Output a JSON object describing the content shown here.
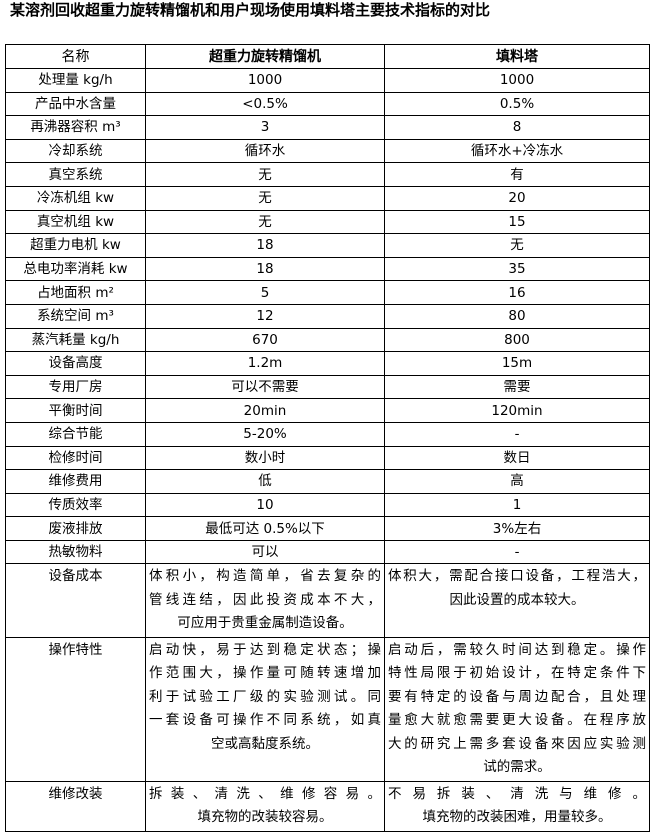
{
  "title": "某溶剂回收超重力旋转精馏机和用户现场使用填料塔主要技术指标的对比",
  "table": {
    "headers": [
      "名称",
      "超重力旋转精馏机",
      "填料塔"
    ],
    "rows": [
      [
        "处理量 kg/h",
        "1000",
        "1000"
      ],
      [
        "产品中水含量",
        "<0.5%",
        "0.5%"
      ],
      [
        "再沸器容积 m³",
        "3",
        "8"
      ],
      [
        "冷却系统",
        "循环水",
        "循环水+冷冻水"
      ],
      [
        "真空系统",
        "无",
        "有"
      ],
      [
        "冷冻机组 kw",
        "无",
        "20"
      ],
      [
        "真空机组 kw",
        "无",
        "15"
      ],
      [
        "超重力电机 kw",
        "18",
        "无"
      ],
      [
        "总电功率消耗 kw",
        "18",
        "35"
      ],
      [
        "占地面积 m²",
        "5",
        "16"
      ],
      [
        "系统空间 m³",
        "12",
        "80"
      ],
      [
        "蒸汽耗量 kg/h",
        "670",
        "800"
      ],
      [
        "设备高度",
        "1.2m",
        "15m"
      ],
      [
        "专用厂房",
        "可以不需要",
        "需要"
      ],
      [
        "平衡时间",
        "20min",
        "120min"
      ],
      [
        "综合节能",
        "5-20%",
        "-"
      ],
      [
        "检修时间",
        "数小时",
        "数日"
      ],
      [
        "维修费用",
        "低",
        "高"
      ],
      [
        "传质效率",
        "10",
        "1"
      ],
      [
        "废液排放",
        "最低可达 0.5%以下",
        "3%左右"
      ],
      [
        "热敏物料",
        "可以",
        "-"
      ]
    ],
    "long_rows": [
      {
        "name": "设备成本",
        "a": [
          "体积小，构造简单，省去复杂的",
          "管线连结，因此投资成本不大，",
          "可应用于贵重金属制造设备。"
        ],
        "b": [
          "体积大，需配合接口设备，工程浩大，",
          "因此设置的成本较大。"
        ]
      },
      {
        "name": "操作特性",
        "a": [
          "启动快，易于达到稳定状态；操",
          "作范围大，操作量可随转速增加",
          "利于试验工厂级的实验测试。同",
          "一套设备可操作不同系统，如真",
          "空或高黏度系统。"
        ],
        "b": [
          "启动后，需较久时间达到稳定。操作",
          "特性局限于初始设计，在特定条件下",
          "要有特定的设备与周边配合，且处理",
          "量愈大就愈需要更大设备。在程序放",
          "大的研究上需多套设备來因应实验测",
          "试的需求。"
        ]
      },
      {
        "name": "维修改装",
        "a": [
          "拆装、清洗、维修容易。",
          "填充物的改装较容易。"
        ],
        "b": [
          "不易拆装、清洗与维修。",
          "填充物的改装困难，用量较多。"
        ]
      }
    ]
  }
}
